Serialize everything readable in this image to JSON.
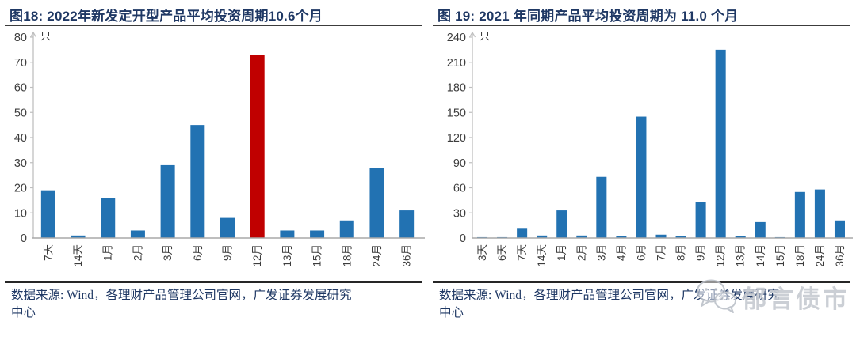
{
  "chart_data": [
    {
      "type": "bar",
      "title": "图18:  2022年新发定开型产品平均投资周期10.6个月",
      "unit": "只",
      "categories": [
        "7天",
        "14天",
        "1月",
        "2月",
        "3月",
        "6月",
        "9月",
        "12月",
        "13月",
        "15月",
        "18月",
        "24月",
        "36月"
      ],
      "values": [
        19,
        1,
        16,
        3,
        29,
        45,
        8,
        73,
        3,
        3,
        7,
        28,
        11
      ],
      "highlight_index": 7,
      "bar_color": "#2272B2",
      "highlight_color": "#C00000",
      "ylim": [
        0,
        80
      ],
      "ystep": 10,
      "grid": "off",
      "legend": "none",
      "source_line1": "数据来源: Wind，各理财产品管理公司官网，广发证券发展研究",
      "source_line2": "中心"
    },
    {
      "type": "bar",
      "title": "图 19:  2021 年同期产品平均投资周期为 11.0 个月",
      "unit": "只",
      "categories": [
        "3天",
        "6天",
        "7天",
        "14天",
        "1月",
        "2月",
        "3月",
        "4月",
        "6月",
        "7月",
        "8月",
        "9月",
        "12月",
        "13月",
        "14月",
        "15月",
        "18月",
        "24月",
        "36月"
      ],
      "values": [
        1,
        1,
        12,
        3,
        33,
        3,
        73,
        2,
        145,
        4,
        2,
        43,
        225,
        2,
        19,
        1,
        55,
        58,
        21
      ],
      "highlight_index": -1,
      "bar_color": "#2272B2",
      "highlight_color": "#C00000",
      "ylim": [
        0,
        240
      ],
      "ystep": 30,
      "grid": "off",
      "legend": "none",
      "source_line1": "数据来源: Wind，各理财产品管理公司官网，广发证券发展研究",
      "source_line2": "中心"
    }
  ],
  "watermark": {
    "text": "郁言债市",
    "icon": "wechat-icon",
    "color": "#c6cad1"
  },
  "style": {
    "axis_color": "#BFBFBF",
    "baseline_color": "#A9A9A9",
    "tick_label_color": "#3d3d3d",
    "title_color": "#1F3864",
    "source_color": "#1F3864"
  }
}
